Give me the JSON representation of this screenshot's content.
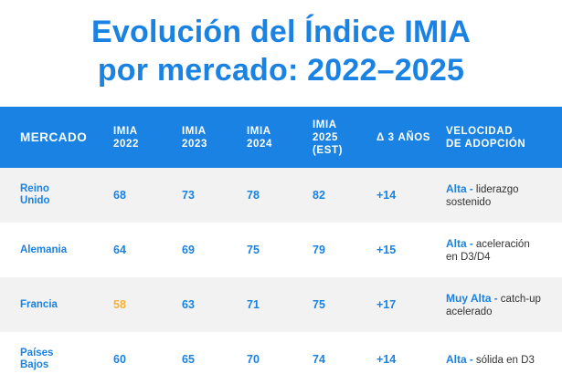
{
  "title": {
    "line1": "Evolución del Índice IMIA",
    "line2": "por mercado: 2022–2025"
  },
  "colors": {
    "accent": "#1a82e2",
    "highlight": "#f6b135",
    "row_alt": "#f2f2f2",
    "text_dark": "#333333"
  },
  "table": {
    "headers": {
      "market": "MERCADO",
      "imia2022": [
        "IMIA",
        "2022"
      ],
      "imia2023": [
        "IMIA",
        "2023"
      ],
      "imia2024": [
        "IMIA",
        "2024"
      ],
      "imia2025": [
        "IMIA",
        "2025",
        "(EST)"
      ],
      "delta": "Δ 3 AÑOS",
      "speed": [
        "VELOCIDAD",
        "DE ADOPCIÓN"
      ]
    },
    "rows": [
      {
        "market": [
          "Reino",
          "Unido"
        ],
        "v2022": "68",
        "v2023": "73",
        "v2024": "78",
        "v2025": "82",
        "delta": "+14",
        "speed_level": "Alta",
        "speed_desc_1": "liderazgo",
        "speed_desc_2": "sostenido"
      },
      {
        "market": [
          "Alemania"
        ],
        "v2022": "64",
        "v2023": "69",
        "v2024": "75",
        "v2025": "79",
        "delta": "+15",
        "speed_level": "Alta",
        "speed_desc_1": "aceleración",
        "speed_desc_2": "en D3/D4"
      },
      {
        "market": [
          "Francia"
        ],
        "v2022": "58",
        "v2023": "63",
        "v2024": "71",
        "v2025": "75",
        "delta": "+17",
        "speed_level": "Muy Alta",
        "speed_desc_1": "catch-up",
        "speed_desc_2": "acelerado"
      },
      {
        "market": [
          "Países",
          "Bajos"
        ],
        "v2022": "60",
        "v2023": "65",
        "v2024": "70",
        "v2025": "74",
        "delta": "+14",
        "speed_level": "Alta",
        "speed_desc_1": "sólida en D3",
        "speed_desc_2": ""
      }
    ]
  }
}
